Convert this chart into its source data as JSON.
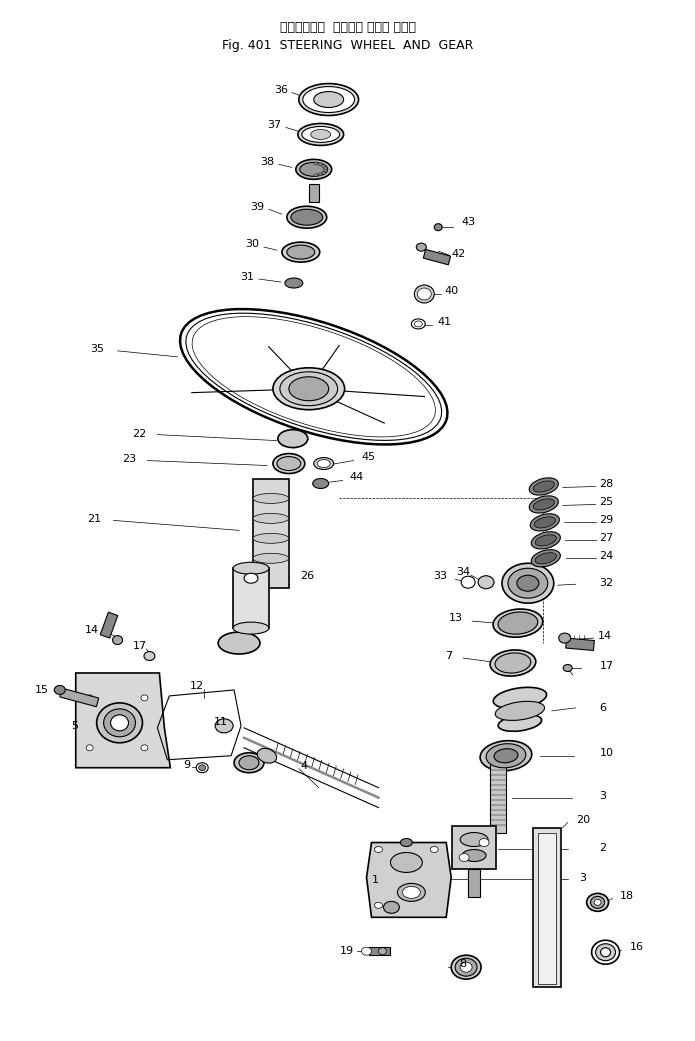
{
  "title_japanese": "ステアリング  ホイール および ギヤー",
  "title_english": "Fig. 401  STEERING  WHEEL  AND  GEAR",
  "bg_color": "#ffffff",
  "fig_width": 6.78,
  "fig_height": 10.24,
  "dpi": 100
}
